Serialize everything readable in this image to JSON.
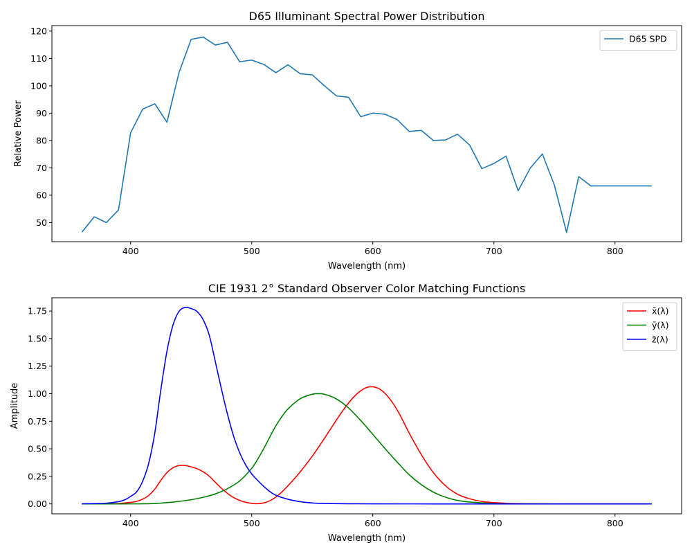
{
  "chart_data": [
    {
      "type": "line",
      "title": "D65  Illuminant Spectral Power Distribution",
      "xlabel": "Wavelength (nm)",
      "ylabel": "Relative Power",
      "xlim": [
        335,
        855
      ],
      "ylim": [
        43,
        122
      ],
      "xticks": [
        400,
        500,
        600,
        700,
        800
      ],
      "yticks": [
        50,
        60,
        70,
        80,
        90,
        100,
        110,
        120
      ],
      "grid": false,
      "legend_position": "top-right",
      "series": [
        {
          "name": "D65 SPD",
          "color": "#1f77b4",
          "x": [
            360,
            370,
            380,
            390,
            400,
            410,
            420,
            430,
            440,
            450,
            460,
            470,
            480,
            490,
            500,
            510,
            520,
            530,
            540,
            550,
            560,
            570,
            580,
            590,
            600,
            610,
            620,
            630,
            640,
            650,
            660,
            670,
            680,
            690,
            700,
            710,
            720,
            730,
            740,
            750,
            760,
            770,
            780,
            790,
            800,
            810,
            820,
            830
          ],
          "y": [
            46.6,
            52.1,
            50.0,
            54.6,
            82.8,
            91.5,
            93.4,
            86.7,
            104.9,
            117.0,
            117.8,
            114.9,
            115.9,
            108.8,
            109.4,
            107.8,
            104.8,
            107.7,
            104.4,
            104.0,
            100.0,
            96.3,
            95.8,
            88.7,
            90.0,
            89.6,
            87.7,
            83.3,
            83.7,
            80.0,
            80.2,
            82.3,
            78.3,
            69.7,
            71.6,
            74.3,
            61.6,
            69.9,
            75.1,
            63.6,
            46.4,
            66.8,
            63.4,
            63.4,
            63.4,
            63.4,
            63.4,
            63.4
          ]
        }
      ]
    },
    {
      "type": "line",
      "title": "CIE 1931 2° Standard Observer Color Matching Functions",
      "xlabel": "Wavelength (nm)",
      "ylabel": "Amplitude",
      "xlim": [
        335,
        855
      ],
      "ylim": [
        -0.09,
        1.87
      ],
      "xticks": [
        400,
        500,
        600,
        700,
        800
      ],
      "yticks": [
        0.0,
        0.25,
        0.5,
        0.75,
        1.0,
        1.25,
        1.5,
        1.75
      ],
      "ytick_labels": [
        "0.00",
        "0.25",
        "0.50",
        "0.75",
        "1.00",
        "1.25",
        "1.50",
        "1.75"
      ],
      "grid": false,
      "legend_position": "top-right",
      "series": [
        {
          "name": "x̄(λ)",
          "color": "#ff0000",
          "x": [
            360,
            370,
            380,
            390,
            400,
            405,
            410,
            415,
            420,
            425,
            430,
            435,
            440,
            445,
            450,
            455,
            460,
            465,
            470,
            475,
            480,
            485,
            490,
            495,
            500,
            505,
            510,
            515,
            520,
            525,
            530,
            535,
            540,
            545,
            550,
            555,
            560,
            565,
            570,
            575,
            580,
            585,
            590,
            595,
            600,
            605,
            610,
            615,
            620,
            625,
            630,
            640,
            650,
            660,
            670,
            680,
            690,
            700,
            710,
            720,
            740,
            760,
            780,
            800,
            830
          ],
          "y": [
            0.0001,
            0.0007,
            0.0014,
            0.0042,
            0.0143,
            0.0232,
            0.0435,
            0.0776,
            0.1344,
            0.2148,
            0.2839,
            0.3285,
            0.3483,
            0.3481,
            0.3362,
            0.3187,
            0.2908,
            0.2511,
            0.1954,
            0.1421,
            0.0956,
            0.058,
            0.032,
            0.0147,
            0.0049,
            0.0024,
            0.0093,
            0.0291,
            0.0633,
            0.1096,
            0.1655,
            0.2257,
            0.2904,
            0.3597,
            0.4334,
            0.5121,
            0.5945,
            0.6784,
            0.7621,
            0.8425,
            0.9163,
            0.9786,
            1.0263,
            1.0567,
            1.0622,
            1.0456,
            1.0026,
            0.9384,
            0.8544,
            0.7514,
            0.6424,
            0.4479,
            0.2835,
            0.1649,
            0.0874,
            0.0468,
            0.0227,
            0.0114,
            0.0058,
            0.0029,
            0.0007,
            0.0002,
            0.0,
            0.0,
            0.0
          ]
        },
        {
          "name": "ȳ(λ)",
          "color": "#008000",
          "x": [
            360,
            380,
            400,
            410,
            420,
            430,
            440,
            450,
            460,
            470,
            480,
            490,
            500,
            505,
            510,
            515,
            520,
            525,
            530,
            540,
            550,
            555,
            560,
            570,
            580,
            590,
            600,
            610,
            620,
            630,
            640,
            650,
            660,
            670,
            680,
            700,
            720,
            760,
            800,
            830
          ],
          "y": [
            0.0,
            0.0,
            0.0004,
            0.0012,
            0.004,
            0.0116,
            0.023,
            0.038,
            0.06,
            0.091,
            0.139,
            0.208,
            0.323,
            0.407,
            0.503,
            0.6082,
            0.71,
            0.7932,
            0.862,
            0.954,
            0.995,
            1.0,
            0.995,
            0.952,
            0.87,
            0.757,
            0.631,
            0.503,
            0.381,
            0.265,
            0.175,
            0.107,
            0.061,
            0.032,
            0.017,
            0.0041,
            0.001,
            0.0001,
            0.0,
            0.0
          ]
        },
        {
          "name": "z̄(λ)",
          "color": "#0000ff",
          "x": [
            360,
            370,
            380,
            390,
            395,
            400,
            405,
            410,
            415,
            420,
            425,
            430,
            435,
            440,
            445,
            450,
            455,
            460,
            465,
            470,
            475,
            480,
            485,
            490,
            495,
            500,
            505,
            510,
            515,
            520,
            530,
            540,
            550,
            560,
            580,
            600,
            650,
            700,
            800,
            830
          ],
          "y": [
            0.0006,
            0.0033,
            0.0065,
            0.0201,
            0.0362,
            0.0679,
            0.1102,
            0.2074,
            0.3713,
            0.6456,
            1.0391,
            1.3856,
            1.623,
            1.7471,
            1.7826,
            1.7721,
            1.7441,
            1.6692,
            1.5281,
            1.2876,
            1.0419,
            0.813,
            0.6162,
            0.4652,
            0.3533,
            0.272,
            0.2123,
            0.1582,
            0.1117,
            0.0782,
            0.0422,
            0.0203,
            0.0087,
            0.0039,
            0.0017,
            0.0008,
            0.0001,
            0.0,
            0.0,
            0.0
          ]
        }
      ]
    }
  ]
}
